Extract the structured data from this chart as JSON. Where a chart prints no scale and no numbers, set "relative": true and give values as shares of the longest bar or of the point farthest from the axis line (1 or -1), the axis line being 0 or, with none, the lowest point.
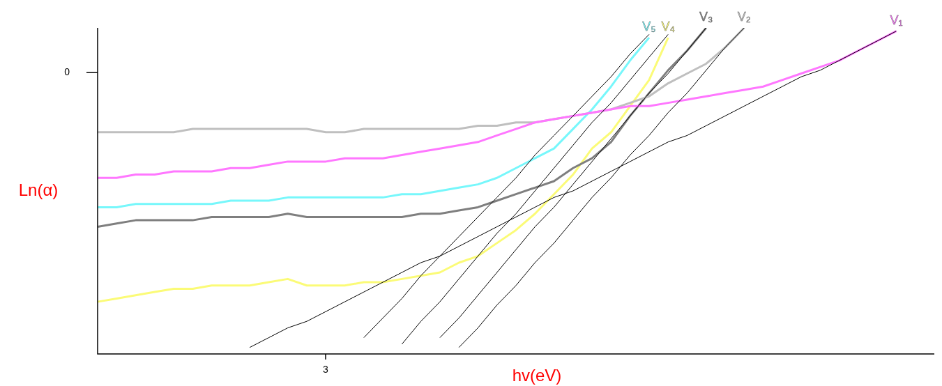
{
  "chart_data": {
    "type": "line",
    "relative": true,
    "xlabel": "hv(eV)",
    "ylabel": "Ln(α)",
    "categories": [
      null,
      null,
      null,
      null,
      null,
      null,
      null,
      null,
      null,
      null,
      null,
      null,
      null,
      null,
      null,
      null,
      null,
      null,
      null,
      null,
      null,
      null,
      null,
      null,
      null,
      null,
      null,
      null,
      null,
      null,
      null,
      null,
      null,
      null,
      null,
      null,
      null,
      null,
      null,
      null,
      null,
      null,
      null,
      null,
      null
    ],
    "annotations": [
      "3",
      "0"
    ],
    "series": [
      {
        "name": "V₁",
        "color": "#ff77ff",
        "values": [
          0.54,
          0.54,
          0.55,
          0.55,
          0.56,
          0.56,
          0.56,
          0.57,
          0.57,
          0.58,
          0.59,
          0.59,
          0.59,
          0.6,
          0.6,
          0.6,
          0.61,
          0.62,
          0.63,
          0.64,
          0.65,
          0.67,
          0.69,
          0.71,
          0.72,
          0.73,
          0.74,
          0.75,
          0.76,
          0.76,
          0.77,
          0.78,
          0.79,
          0.8,
          0.81,
          0.82,
          0.84,
          0.86,
          0.88,
          0.9,
          0.93,
          0.96,
          0.99,
          null,
          null
        ]
      },
      {
        "name": "V₂",
        "color": "#bfbfbf",
        "values": [
          0.68,
          0.68,
          0.68,
          0.68,
          0.68,
          0.69,
          0.69,
          0.69,
          0.69,
          0.69,
          0.69,
          0.69,
          0.68,
          0.68,
          0.69,
          0.69,
          0.69,
          0.69,
          0.69,
          0.69,
          0.7,
          0.7,
          0.71,
          0.71,
          0.72,
          0.73,
          0.74,
          0.75,
          0.77,
          0.79,
          0.83,
          0.86,
          0.89,
          0.94,
          1.0,
          null,
          null,
          null,
          null,
          null,
          null,
          null,
          null,
          null,
          null
        ]
      },
      {
        "name": "V₃",
        "color": "#7f7f7f",
        "values": [
          0.39,
          0.4,
          0.41,
          0.41,
          0.41,
          0.41,
          0.42,
          0.42,
          0.42,
          0.42,
          0.43,
          0.42,
          0.42,
          0.42,
          0.42,
          0.42,
          0.42,
          0.43,
          0.43,
          0.44,
          0.45,
          0.47,
          0.49,
          0.51,
          0.53,
          0.57,
          0.6,
          0.65,
          0.73,
          0.8,
          0.87,
          0.93,
          1.0,
          null,
          null,
          null,
          null,
          null,
          null,
          null,
          null,
          null,
          null,
          null,
          null
        ]
      },
      {
        "name": "V₄",
        "color": "#fbfb77",
        "values": [
          0.16,
          0.17,
          0.18,
          0.19,
          0.2,
          0.2,
          0.21,
          0.21,
          0.21,
          0.22,
          0.23,
          0.21,
          0.21,
          0.21,
          0.22,
          0.22,
          0.23,
          0.24,
          0.25,
          0.28,
          0.3,
          0.34,
          0.38,
          0.43,
          0.49,
          0.55,
          0.63,
          0.68,
          0.76,
          0.84,
          0.97,
          null,
          null,
          null,
          null,
          null,
          null,
          null,
          null,
          null,
          null,
          null,
          null,
          null,
          null
        ]
      },
      {
        "name": "V₅",
        "color": "#77f7fb",
        "values": [
          0.45,
          0.45,
          0.46,
          0.46,
          0.46,
          0.46,
          0.46,
          0.47,
          0.47,
          0.47,
          0.48,
          0.48,
          0.48,
          0.48,
          0.48,
          0.48,
          0.49,
          0.49,
          0.5,
          0.51,
          0.52,
          0.54,
          0.57,
          0.6,
          0.63,
          0.69,
          0.75,
          0.82,
          0.9,
          0.97,
          null,
          null,
          null,
          null,
          null,
          null,
          null,
          null,
          null,
          null,
          null,
          null,
          null,
          null,
          null
        ]
      },
      {
        "type": "line",
        "color": "#000000",
        "values": [
          null,
          null,
          null,
          null,
          null,
          null,
          null,
          null,
          0.02,
          0.05,
          0.08,
          0.1,
          0.13,
          0.16,
          0.19,
          0.22,
          0.25,
          0.28,
          0.3,
          0.33,
          0.36,
          0.39,
          0.42,
          0.45,
          0.48,
          0.5,
          0.53,
          0.56,
          0.59,
          0.62,
          0.65,
          0.67,
          0.7,
          0.73,
          0.76,
          0.79,
          0.82,
          0.85,
          0.87,
          0.9,
          0.93,
          0.96,
          0.99,
          null,
          null
        ]
      },
      {
        "type": "line",
        "color": "#000000",
        "values": [
          null,
          null,
          null,
          null,
          null,
          null,
          null,
          null,
          null,
          null,
          null,
          null,
          null,
          null,
          null,
          null,
          null,
          null,
          null,
          0.02,
          0.08,
          0.15,
          0.21,
          0.28,
          0.34,
          0.41,
          0.48,
          0.54,
          0.61,
          0.67,
          0.74,
          0.8,
          0.87,
          0.94,
          1.0,
          null,
          null,
          null,
          null,
          null,
          null,
          null,
          null,
          null,
          null
        ]
      },
      {
        "type": "line",
        "color": "#000000",
        "values": [
          null,
          null,
          null,
          null,
          null,
          null,
          null,
          null,
          null,
          null,
          null,
          null,
          null,
          null,
          null,
          null,
          null,
          null,
          0.05,
          0.11,
          0.18,
          0.25,
          0.32,
          0.39,
          0.45,
          0.52,
          0.59,
          0.66,
          0.73,
          0.8,
          0.86,
          0.93,
          1.0,
          null,
          null,
          null,
          null,
          null,
          null,
          null,
          null,
          null,
          null,
          null,
          null
        ]
      },
      {
        "type": "line",
        "color": "#000000",
        "values": [
          null,
          null,
          null,
          null,
          null,
          null,
          null,
          null,
          null,
          null,
          null,
          null,
          null,
          null,
          null,
          null,
          0.03,
          0.1,
          0.16,
          0.23,
          0.3,
          0.37,
          0.43,
          0.5,
          0.57,
          0.64,
          0.71,
          0.77,
          0.84,
          0.91,
          0.98,
          null,
          null,
          null,
          null,
          null,
          null,
          null,
          null,
          null,
          null,
          null,
          null,
          null,
          null
        ]
      },
      {
        "type": "line",
        "color": "#000000",
        "values": [
          null,
          null,
          null,
          null,
          null,
          null,
          null,
          null,
          null,
          null,
          null,
          null,
          null,
          null,
          0.05,
          0.11,
          0.17,
          0.24,
          0.3,
          0.36,
          0.42,
          0.48,
          0.54,
          0.61,
          0.67,
          0.73,
          0.79,
          0.85,
          0.92,
          0.98,
          null,
          null,
          null,
          null,
          null,
          null,
          null,
          null,
          null,
          null,
          null,
          null,
          null,
          null,
          null
        ]
      }
    ]
  }
}
